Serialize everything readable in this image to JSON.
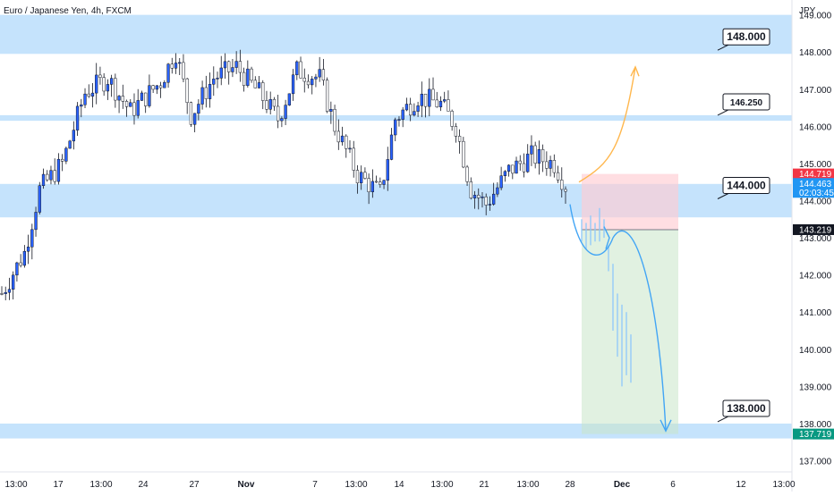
{
  "header": {
    "title": "Euro / Japanese Yen, 4h, FXCM"
  },
  "currency_label": "JPY",
  "colors": {
    "bull": "#2962ff",
    "bear": "#ffffff",
    "zone": "#bbdefb",
    "stop_zone": "#ffcdd2",
    "target_zone": "#c8e6c9",
    "path_down": "#42a5f5",
    "path_up": "#ffb74d",
    "ghost": "#90caf9"
  },
  "badges": {
    "ask": {
      "value": "144.719",
      "color": "#f23645"
    },
    "bid": {
      "value": "144.463",
      "countdown": "02:03:45",
      "color": "#2196f3"
    },
    "entry": {
      "value": "143.219",
      "color": "#131722"
    },
    "target": {
      "value": "137.719",
      "color": "#089981"
    }
  },
  "chart_data": {
    "type": "candlestick",
    "symbol": "Euro / Japanese Yen",
    "timeframe": "4h",
    "source": "FXCM",
    "y_range": [
      136.7,
      149.4
    ],
    "y_ticks": [
      "137.000",
      "138.000",
      "139.000",
      "140.000",
      "141.000",
      "142.000",
      "143.000",
      "144.000",
      "145.000",
      "146.000",
      "147.000",
      "148.000",
      "149.000"
    ],
    "x_ticks": [
      "13:00",
      "17",
      "13:00",
      "24",
      "27",
      "Nov",
      "7",
      "13:00",
      "14",
      "13:00",
      "21",
      "13:00",
      "28",
      "Dec",
      "6",
      "12",
      "13:00"
    ],
    "zones": [
      {
        "from": 147.95,
        "to": 149.0
      },
      {
        "from": 146.15,
        "to": 146.3
      },
      {
        "from": 143.55,
        "to": 144.45
      },
      {
        "from": 137.6,
        "to": 138.0
      }
    ],
    "levels": [
      {
        "label": "148.000",
        "value": 148.0
      },
      {
        "label": "146.250",
        "value": 146.25
      },
      {
        "label": "144.000",
        "value": 144.0
      },
      {
        "label": "138.000",
        "value": 138.0
      }
    ],
    "position": {
      "entry": 143.219,
      "stop": 144.719,
      "target": 137.719
    },
    "candle_count": 150,
    "key_prices": [
      {
        "i": 0,
        "p": 141.5
      },
      {
        "i": 6,
        "p": 142.6
      },
      {
        "i": 10,
        "p": 144.3
      },
      {
        "i": 16,
        "p": 145.0
      },
      {
        "i": 22,
        "p": 146.9
      },
      {
        "i": 28,
        "p": 147.3
      },
      {
        "i": 34,
        "p": 146.4
      },
      {
        "i": 42,
        "p": 147.2
      },
      {
        "i": 46,
        "p": 148.0
      },
      {
        "i": 50,
        "p": 146.3
      },
      {
        "i": 56,
        "p": 147.3
      },
      {
        "i": 62,
        "p": 147.6
      },
      {
        "i": 68,
        "p": 146.9
      },
      {
        "i": 73,
        "p": 146.2
      },
      {
        "i": 78,
        "p": 147.5
      },
      {
        "i": 84,
        "p": 147.3
      },
      {
        "i": 88,
        "p": 146.0
      },
      {
        "i": 94,
        "p": 144.7
      },
      {
        "i": 100,
        "p": 144.2
      },
      {
        "i": 104,
        "p": 146.2
      },
      {
        "i": 110,
        "p": 146.8
      },
      {
        "i": 116,
        "p": 146.6
      },
      {
        "i": 120,
        "p": 146.0
      },
      {
        "i": 124,
        "p": 144.3
      },
      {
        "i": 128,
        "p": 143.9
      },
      {
        "i": 134,
        "p": 144.8
      },
      {
        "i": 140,
        "p": 145.2
      },
      {
        "i": 146,
        "p": 145.0
      },
      {
        "i": 149,
        "p": 144.4
      }
    ],
    "projection_down": [
      {
        "x": "28",
        "y": 143.9
      },
      {
        "x": "28",
        "y": 142.6
      },
      {
        "x": "28",
        "y": 143.0
      },
      {
        "x": "6",
        "y": 137.8
      }
    ],
    "projection_up": [
      {
        "x": "28",
        "y": 144.5
      },
      {
        "x": "Dec",
        "y": 146.0
      },
      {
        "x": "Dec",
        "y": 147.6
      }
    ]
  }
}
